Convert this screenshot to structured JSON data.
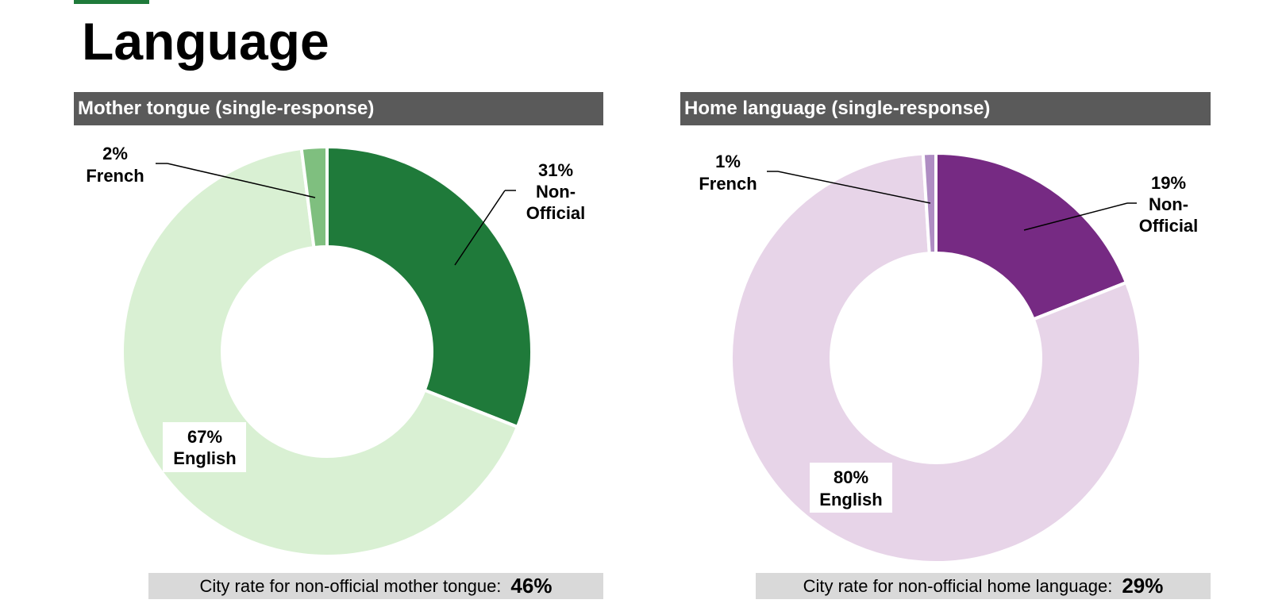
{
  "page": {
    "title": "Language"
  },
  "chart_data": [
    {
      "type": "pie",
      "variant": "donut",
      "title": "Mother tongue (single-response)",
      "slices": [
        {
          "label": "Non-Official",
          "value": 31,
          "percent_label": "31%",
          "color": "#1f7a3a"
        },
        {
          "label": "English",
          "value": 67,
          "percent_label": "67%",
          "color": "#d9f0d3"
        },
        {
          "label": "French",
          "value": 2,
          "percent_label": "2%",
          "color": "#7fbf7f"
        }
      ],
      "footer": {
        "text": "City rate for non-official mother tongue:",
        "value": "46%"
      }
    },
    {
      "type": "pie",
      "variant": "donut",
      "title": "Home language (single-response)",
      "slices": [
        {
          "label": "Non-Official",
          "value": 19,
          "percent_label": "19%",
          "color": "#762a83"
        },
        {
          "label": "English",
          "value": 80,
          "percent_label": "80%",
          "color": "#e7d4e8"
        },
        {
          "label": "French",
          "value": 1,
          "percent_label": "1%",
          "color": "#af8dc3"
        }
      ],
      "footer": {
        "text": "City rate for non-official home language:",
        "value": "29%"
      }
    }
  ]
}
